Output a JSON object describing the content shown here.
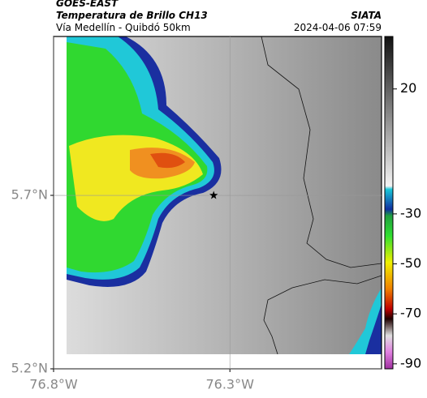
{
  "header": {
    "satellite": "GOES-EAST",
    "product": "Temperatura de Brillo CH13",
    "region": "Vía Medellín - Quibdó 50km",
    "source": "SIATA",
    "timestamp": "2024-04-06 07:59"
  },
  "chart_data": {
    "type": "map",
    "xlim": [
      -76.8,
      -75.87
    ],
    "ylim": [
      5.2,
      6.158
    ],
    "xticks": [
      {
        "value": -76.8,
        "label": "76.8°W"
      },
      {
        "value": -76.3,
        "label": "76.3°W"
      }
    ],
    "yticks": [
      {
        "value": 5.2,
        "label": "5.2°N"
      },
      {
        "value": 5.7,
        "label": "5.7°N"
      }
    ],
    "grid": true,
    "colorbar": {
      "lim": [
        -92,
        41
      ],
      "ticks": [
        20,
        -30,
        -50,
        -70,
        -90
      ]
    },
    "markers": [
      {
        "x": -76.346,
        "y": 5.7
      }
    ]
  }
}
